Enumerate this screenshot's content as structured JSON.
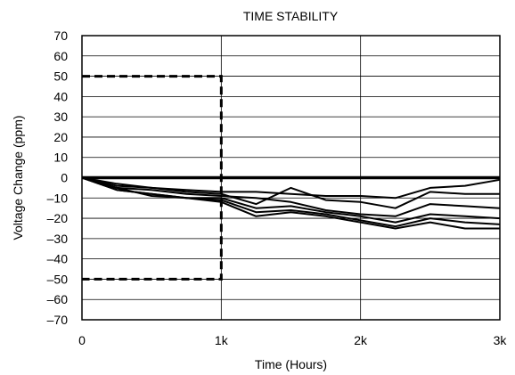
{
  "chart_data": {
    "type": "line",
    "title": "TIME STABILITY",
    "xlabel": "Time (Hours)",
    "ylabel": "Voltage Change (ppm)",
    "xlim": [
      0,
      3000
    ],
    "ylim": [
      -70,
      70
    ],
    "x_ticks": [
      0,
      1000,
      2000,
      3000
    ],
    "x_tick_labels": [
      "0",
      "1k",
      "2k",
      "3k"
    ],
    "y_ticks": [
      70,
      60,
      50,
      40,
      30,
      20,
      10,
      0,
      -10,
      -20,
      -30,
      -40,
      -50,
      -60,
      -70
    ],
    "y_tick_labels": [
      "70",
      "60",
      "50",
      "40",
      "30",
      "20",
      "10",
      "0",
      "–10",
      "–20",
      "–30",
      "–40",
      "–50",
      "–60",
      "–70"
    ],
    "grid": true,
    "limit_box": {
      "x": [
        0,
        1000
      ],
      "y": [
        -50,
        50
      ],
      "style": "dashed"
    },
    "zero_line": 0,
    "series": [
      {
        "x": [
          0,
          250,
          500,
          750,
          1000,
          1250,
          1500,
          1750,
          2000,
          2250,
          2500,
          2750,
          3000
        ],
        "values": [
          0,
          -4,
          -5,
          -6,
          -7,
          -7,
          -8,
          -9,
          -9,
          -10,
          -5,
          -4,
          -1
        ]
      },
      {
        "x": [
          0,
          250,
          500,
          750,
          1000,
          1250,
          1500,
          1750,
          2000,
          2250,
          2500,
          2750,
          3000
        ],
        "values": [
          0,
          -3,
          -5,
          -7,
          -8,
          -13,
          -5,
          -11,
          -12,
          -15,
          -7,
          -8,
          -8
        ]
      },
      {
        "x": [
          0,
          250,
          500,
          750,
          1000,
          1250,
          1500,
          1750,
          2000,
          2250,
          2500,
          2750,
          3000
        ],
        "values": [
          0,
          -5,
          -6,
          -8,
          -9,
          -10,
          -12,
          -16,
          -18,
          -19,
          -13,
          -14,
          -15
        ]
      },
      {
        "x": [
          0,
          250,
          500,
          750,
          1000,
          1250,
          1500,
          1750,
          2000,
          2250,
          2500,
          2750,
          3000
        ],
        "values": [
          0,
          -6,
          -8,
          -10,
          -10,
          -15,
          -14,
          -17,
          -19,
          -22,
          -18,
          -19,
          -20
        ]
      },
      {
        "x": [
          0,
          250,
          500,
          750,
          1000,
          1250,
          1500,
          1750,
          2000,
          2250,
          2500,
          2750,
          3000
        ],
        "values": [
          0,
          -6,
          -8,
          -10,
          -11,
          -17,
          -16,
          -18,
          -21,
          -24,
          -20,
          -22,
          -23
        ]
      },
      {
        "x": [
          0,
          250,
          500,
          750,
          1000,
          1250,
          1500,
          1750,
          2000,
          2250,
          2500,
          2750,
          3000
        ],
        "values": [
          0,
          -5,
          -9,
          -10,
          -12,
          -19,
          -17,
          -19,
          -22,
          -25,
          -22,
          -25,
          -25
        ]
      }
    ]
  }
}
